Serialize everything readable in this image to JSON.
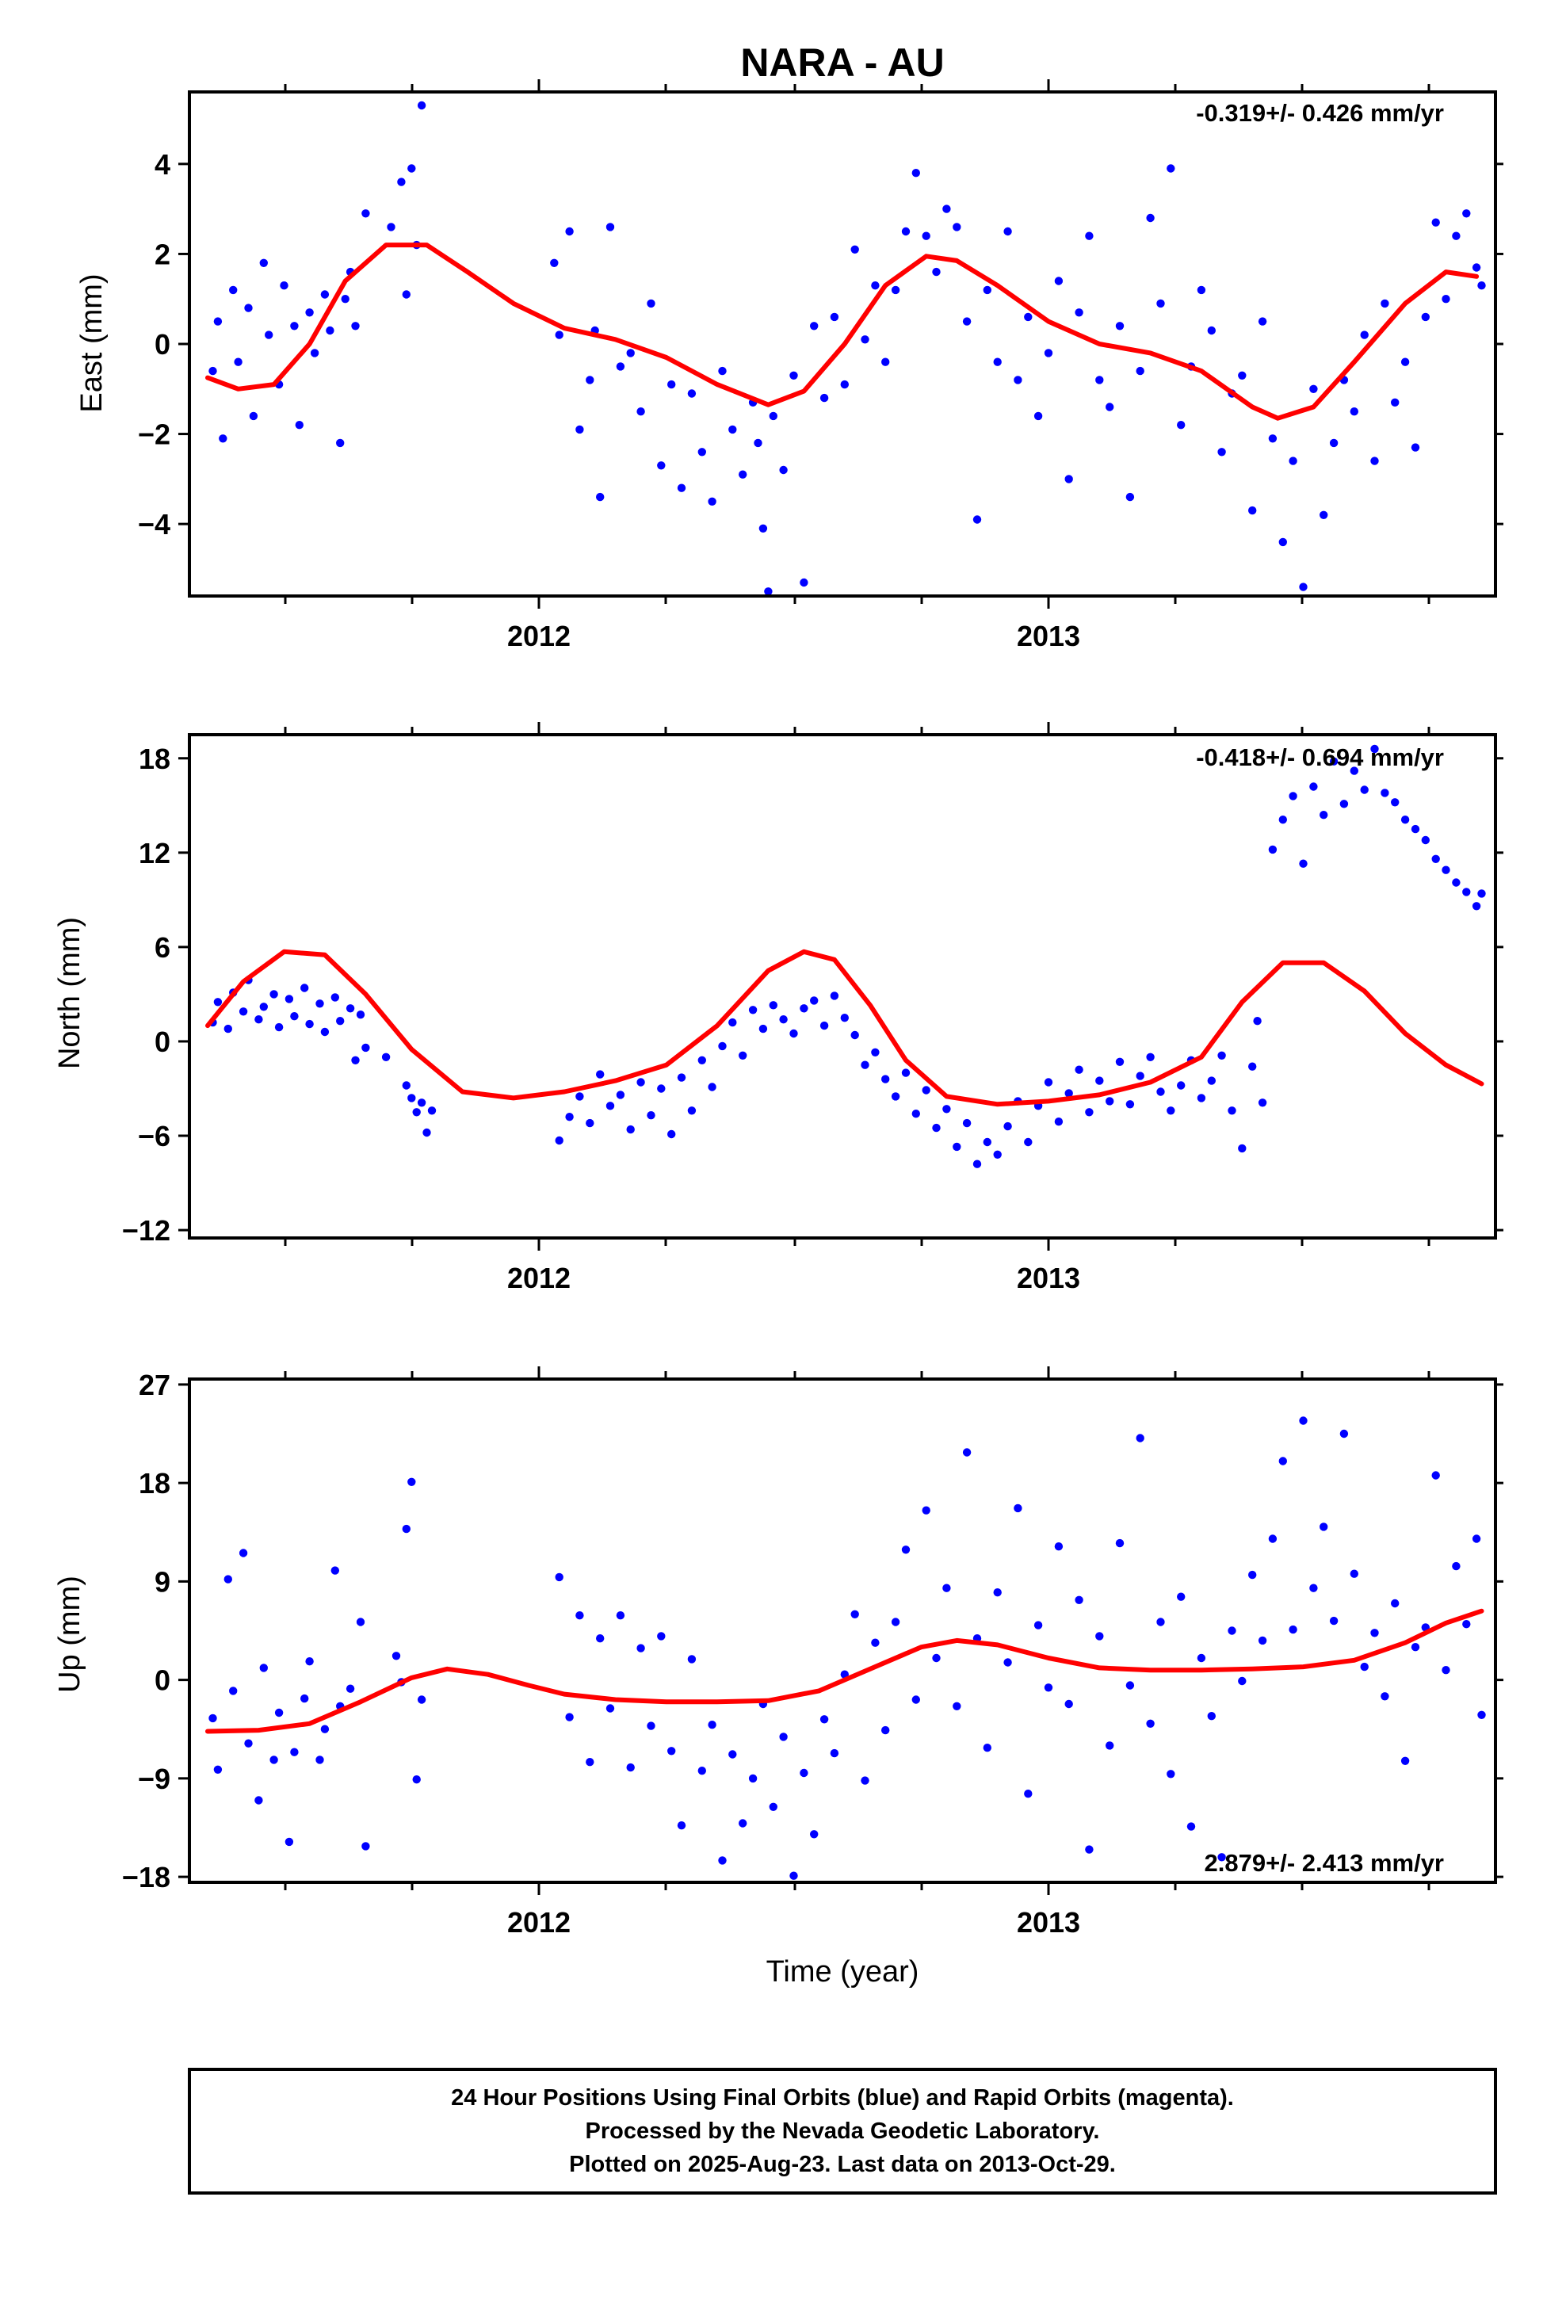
{
  "chart_data": {
    "title": "NARA - AU",
    "type": "scatter",
    "xlabel": "Time (year)",
    "x_tick_labels": [
      "2012",
      "2013"
    ],
    "xlim": [
      2011.31,
      2013.88
    ],
    "point_color": "#0000ff",
    "fit_color": "#ff0000",
    "panels": [
      {
        "name": "east",
        "ylabel": "East (mm)",
        "ylim": [
          -5.6,
          5.6
        ],
        "yticks": [
          -4,
          -2,
          0,
          2,
          4
        ],
        "ytick_labels": [
          "−4",
          "−2",
          "0",
          "2",
          "4"
        ],
        "annotation": "-0.319+/- 0.426 mm/yr",
        "fit_curve": {
          "x": [
            2011.35,
            2011.41,
            2011.48,
            2011.55,
            2011.62,
            2011.7,
            2011.78,
            2011.86,
            2011.95,
            2012.05,
            2012.15,
            2012.25,
            2012.35,
            2012.45,
            2012.52,
            2012.6,
            2012.68,
            2012.76,
            2012.82,
            2012.9,
            2013.0,
            2013.1,
            2013.2,
            2013.3,
            2013.4,
            2013.45,
            2013.52,
            2013.6,
            2013.7,
            2013.78,
            2013.84
          ],
          "y": [
            -0.75,
            -1.0,
            -0.9,
            0.0,
            1.4,
            2.2,
            2.2,
            1.6,
            0.9,
            0.35,
            0.1,
            -0.3,
            -0.9,
            -1.35,
            -1.05,
            0.0,
            1.3,
            1.95,
            1.85,
            1.3,
            0.5,
            0.0,
            -0.2,
            -0.6,
            -1.4,
            -1.65,
            -1.4,
            -0.4,
            0.9,
            1.6,
            1.5
          ]
        },
        "points": {
          "x": [
            2011.36,
            2011.37,
            2011.38,
            2011.4,
            2011.41,
            2011.43,
            2011.44,
            2011.46,
            2011.47,
            2011.49,
            2011.5,
            2011.52,
            2011.53,
            2011.55,
            2011.56,
            2011.58,
            2011.59,
            2011.61,
            2011.62,
            2011.63,
            2011.64,
            2011.66,
            2011.71,
            2011.73,
            2011.74,
            2011.75,
            2011.76,
            2011.77,
            2012.03,
            2012.04,
            2012.06,
            2012.08,
            2012.1,
            2012.11,
            2012.12,
            2012.14,
            2012.16,
            2012.18,
            2012.2,
            2012.22,
            2012.24,
            2012.26,
            2012.28,
            2012.3,
            2012.32,
            2012.34,
            2012.36,
            2012.38,
            2012.4,
            2012.42,
            2012.43,
            2012.44,
            2012.45,
            2012.46,
            2012.48,
            2012.5,
            2012.52,
            2012.54,
            2012.56,
            2012.58,
            2012.6,
            2012.62,
            2012.64,
            2012.66,
            2012.68,
            2012.7,
            2012.72,
            2012.74,
            2012.76,
            2012.78,
            2012.8,
            2012.82,
            2012.84,
            2012.86,
            2012.88,
            2012.9,
            2012.92,
            2012.94,
            2012.96,
            2012.98,
            2013.0,
            2013.02,
            2013.04,
            2013.06,
            2013.08,
            2013.1,
            2013.12,
            2013.14,
            2013.16,
            2013.18,
            2013.2,
            2013.22,
            2013.24,
            2013.26,
            2013.28,
            2013.3,
            2013.32,
            2013.34,
            2013.36,
            2013.38,
            2013.4,
            2013.42,
            2013.44,
            2013.46,
            2013.48,
            2013.5,
            2013.52,
            2013.54,
            2013.56,
            2013.58,
            2013.6,
            2013.62,
            2013.64,
            2013.66,
            2013.68,
            2013.7,
            2013.72,
            2013.74,
            2013.76,
            2013.78,
            2013.8,
            2013.82,
            2013.84,
            2013.85
          ],
          "y": [
            -0.6,
            0.5,
            -2.1,
            1.2,
            -0.4,
            0.8,
            -1.6,
            1.8,
            0.2,
            -0.9,
            1.3,
            0.4,
            -1.8,
            0.7,
            -0.2,
            1.1,
            0.3,
            -2.2,
            1.0,
            1.6,
            0.4,
            2.9,
            2.6,
            3.6,
            1.1,
            3.9,
            2.2,
            5.3,
            1.8,
            0.2,
            2.5,
            -1.9,
            -0.8,
            0.3,
            -3.4,
            2.6,
            -0.5,
            -0.2,
            -1.5,
            0.9,
            -2.7,
            -0.9,
            -3.2,
            -1.1,
            -2.4,
            -3.5,
            -0.6,
            -1.9,
            -2.9,
            -1.3,
            -2.2,
            -4.1,
            -5.5,
            -1.6,
            -2.8,
            -0.7,
            -5.3,
            0.4,
            -1.2,
            0.6,
            -0.9,
            2.1,
            0.1,
            1.3,
            -0.4,
            1.2,
            2.5,
            3.8,
            2.4,
            1.6,
            3.0,
            2.6,
            0.5,
            -3.9,
            1.2,
            -0.4,
            2.5,
            -0.8,
            0.6,
            -1.6,
            -0.2,
            1.4,
            -3.0,
            0.7,
            2.4,
            -0.8,
            -1.4,
            0.4,
            -3.4,
            -0.6,
            2.8,
            0.9,
            3.9,
            -1.8,
            -0.5,
            1.2,
            0.3,
            -2.4,
            -1.1,
            -0.7,
            -3.7,
            0.5,
            -2.1,
            -4.4,
            -2.6,
            -5.4,
            -1.0,
            -3.8,
            -2.2,
            -0.8,
            -1.5,
            0.2,
            -2.6,
            0.9,
            -1.3,
            -0.4,
            -2.3,
            0.6,
            2.7,
            1.0,
            2.4,
            2.9,
            1.7,
            1.3
          ]
        }
      },
      {
        "name": "north",
        "ylabel": "North (mm)",
        "ylim": [
          -12.5,
          19.5
        ],
        "yticks": [
          -12,
          -6,
          0,
          6,
          12,
          18
        ],
        "ytick_labels": [
          "−12",
          "−6",
          "0",
          "6",
          "12",
          "18"
        ],
        "annotation": "-0.418+/- 0.694 mm/yr",
        "fit_curve": {
          "x": [
            2011.35,
            2011.42,
            2011.5,
            2011.58,
            2011.66,
            2011.75,
            2011.85,
            2011.95,
            2012.05,
            2012.15,
            2012.25,
            2012.35,
            2012.45,
            2012.52,
            2012.58,
            2012.65,
            2012.72,
            2012.8,
            2012.9,
            2013.0,
            2013.1,
            2013.2,
            2013.3,
            2013.38,
            2013.46,
            2013.54,
            2013.62,
            2013.7,
            2013.78,
            2013.85
          ],
          "y": [
            1.0,
            3.8,
            5.7,
            5.5,
            3.0,
            -0.5,
            -3.2,
            -3.6,
            -3.2,
            -2.5,
            -1.5,
            1.0,
            4.5,
            5.7,
            5.2,
            2.3,
            -1.2,
            -3.5,
            -4.0,
            -3.8,
            -3.4,
            -2.6,
            -1.0,
            2.5,
            5.0,
            5.0,
            3.2,
            0.5,
            -1.5,
            -2.7
          ]
        },
        "points": {
          "x": [
            2011.36,
            2011.37,
            2011.39,
            2011.4,
            2011.42,
            2011.43,
            2011.45,
            2011.46,
            2011.48,
            2011.49,
            2011.51,
            2011.52,
            2011.54,
            2011.55,
            2011.57,
            2011.58,
            2011.6,
            2011.61,
            2011.63,
            2011.64,
            2011.65,
            2011.66,
            2011.7,
            2011.74,
            2011.75,
            2011.76,
            2011.77,
            2011.78,
            2011.79,
            2012.04,
            2012.06,
            2012.08,
            2012.1,
            2012.12,
            2012.14,
            2012.16,
            2012.18,
            2012.2,
            2012.22,
            2012.24,
            2012.26,
            2012.28,
            2012.3,
            2012.32,
            2012.34,
            2012.36,
            2012.38,
            2012.4,
            2012.42,
            2012.44,
            2012.46,
            2012.48,
            2012.5,
            2012.52,
            2012.54,
            2012.56,
            2012.58,
            2012.6,
            2012.62,
            2012.64,
            2012.66,
            2012.68,
            2012.7,
            2012.72,
            2012.74,
            2012.76,
            2012.78,
            2012.8,
            2012.82,
            2012.84,
            2012.86,
            2012.88,
            2012.9,
            2012.92,
            2012.94,
            2012.96,
            2012.98,
            2013.0,
            2013.02,
            2013.04,
            2013.06,
            2013.08,
            2013.1,
            2013.12,
            2013.14,
            2013.16,
            2013.18,
            2013.2,
            2013.22,
            2013.24,
            2013.26,
            2013.28,
            2013.3,
            2013.32,
            2013.34,
            2013.36,
            2013.38,
            2013.4,
            2013.41,
            2013.42,
            2013.44,
            2013.46,
            2013.48,
            2013.5,
            2013.52,
            2013.54,
            2013.56,
            2013.58,
            2013.6,
            2013.62,
            2013.64,
            2013.66,
            2013.68,
            2013.7,
            2013.72,
            2013.74,
            2013.76,
            2013.78,
            2013.8,
            2013.82,
            2013.84,
            2013.85
          ],
          "y": [
            1.2,
            2.5,
            0.8,
            3.1,
            1.9,
            3.9,
            1.4,
            2.2,
            3.0,
            0.9,
            2.7,
            1.6,
            3.4,
            1.1,
            2.4,
            0.6,
            2.8,
            1.3,
            2.1,
            -1.2,
            1.7,
            -0.4,
            -1.0,
            -2.8,
            -3.6,
            -4.5,
            -3.9,
            -5.8,
            -4.4,
            -6.3,
            -4.8,
            -3.5,
            -5.2,
            -2.1,
            -4.1,
            -3.4,
            -5.6,
            -2.6,
            -4.7,
            -3.0,
            -5.9,
            -2.3,
            -4.4,
            -1.2,
            -2.9,
            -0.3,
            1.2,
            -0.9,
            2.0,
            0.8,
            2.3,
            1.4,
            0.5,
            2.1,
            2.6,
            1.0,
            2.9,
            1.5,
            0.4,
            -1.5,
            -0.7,
            -2.4,
            -3.5,
            -2.0,
            -4.6,
            -3.1,
            -5.5,
            -4.3,
            -6.7,
            -5.2,
            -7.8,
            -6.4,
            -7.2,
            -5.4,
            -3.8,
            -6.4,
            -4.1,
            -2.6,
            -5.1,
            -3.3,
            -1.8,
            -4.5,
            -2.5,
            -3.8,
            -1.3,
            -4.0,
            -2.2,
            -1.0,
            -3.2,
            -4.4,
            -2.8,
            -1.2,
            -3.6,
            -2.5,
            -0.9,
            -4.4,
            -6.8,
            -1.6,
            1.3,
            -3.9,
            12.2,
            14.1,
            15.6,
            11.3,
            16.2,
            14.4,
            17.8,
            15.1,
            17.2,
            16.0,
            18.6,
            15.8,
            15.2,
            14.1,
            13.5,
            12.8,
            11.6,
            10.9,
            10.1,
            9.5,
            8.6,
            9.4
          ]
        }
      },
      {
        "name": "up",
        "ylabel": "Up (mm)",
        "ylim": [
          -18.5,
          27.5
        ],
        "yticks": [
          -18,
          -9,
          0,
          9,
          18,
          27
        ],
        "ytick_labels": [
          "−18",
          "−9",
          "0",
          "9",
          "18",
          "27"
        ],
        "annotation": "2.879+/- 2.413 mm/yr",
        "fit_curve": {
          "x": [
            2011.35,
            2011.45,
            2011.55,
            2011.65,
            2011.75,
            2011.82,
            2011.9,
            2011.98,
            2012.05,
            2012.15,
            2012.25,
            2012.35,
            2012.45,
            2012.55,
            2012.65,
            2012.75,
            2012.82,
            2012.9,
            2013.0,
            2013.1,
            2013.2,
            2013.3,
            2013.4,
            2013.5,
            2013.6,
            2013.7,
            2013.78,
            2013.85
          ],
          "y": [
            -4.7,
            -4.6,
            -4.0,
            -2.0,
            0.2,
            1.0,
            0.5,
            -0.5,
            -1.3,
            -1.8,
            -2.0,
            -2.0,
            -1.9,
            -1.0,
            1.0,
            3.0,
            3.6,
            3.2,
            2.0,
            1.1,
            0.9,
            0.9,
            1.0,
            1.2,
            1.8,
            3.4,
            5.2,
            6.3
          ]
        },
        "points": {
          "x": [
            2011.36,
            2011.37,
            2011.39,
            2011.4,
            2011.42,
            2011.43,
            2011.45,
            2011.46,
            2011.48,
            2011.49,
            2011.51,
            2011.52,
            2011.54,
            2011.55,
            2011.57,
            2011.58,
            2011.6,
            2011.61,
            2011.63,
            2011.65,
            2011.66,
            2011.72,
            2011.73,
            2011.74,
            2011.75,
            2011.76,
            2011.77,
            2012.04,
            2012.06,
            2012.08,
            2012.1,
            2012.12,
            2012.14,
            2012.16,
            2012.18,
            2012.2,
            2012.22,
            2012.24,
            2012.26,
            2012.28,
            2012.3,
            2012.32,
            2012.34,
            2012.36,
            2012.38,
            2012.4,
            2012.42,
            2012.44,
            2012.46,
            2012.48,
            2012.5,
            2012.52,
            2012.54,
            2012.56,
            2012.58,
            2012.6,
            2012.62,
            2012.64,
            2012.66,
            2012.68,
            2012.7,
            2012.72,
            2012.74,
            2012.76,
            2012.78,
            2012.8,
            2012.82,
            2012.84,
            2012.86,
            2012.88,
            2012.9,
            2012.92,
            2012.94,
            2012.96,
            2012.98,
            2013.0,
            2013.02,
            2013.04,
            2013.06,
            2013.08,
            2013.1,
            2013.12,
            2013.14,
            2013.16,
            2013.18,
            2013.2,
            2013.22,
            2013.24,
            2013.26,
            2013.28,
            2013.3,
            2013.32,
            2013.34,
            2013.36,
            2013.38,
            2013.4,
            2013.42,
            2013.44,
            2013.46,
            2013.48,
            2013.5,
            2013.52,
            2013.54,
            2013.56,
            2013.58,
            2013.6,
            2013.62,
            2013.64,
            2013.66,
            2013.68,
            2013.7,
            2013.72,
            2013.74,
            2013.76,
            2013.78,
            2013.8,
            2013.82,
            2013.84,
            2013.85
          ],
          "y": [
            -3.5,
            -8.2,
            9.2,
            -1.0,
            11.6,
            -5.8,
            -11.0,
            1.1,
            -7.3,
            -3.0,
            -14.8,
            -6.6,
            -1.7,
            1.7,
            -7.3,
            -4.5,
            10.0,
            -2.4,
            -0.8,
            5.3,
            -15.2,
            2.2,
            -0.2,
            13.8,
            18.1,
            -9.1,
            -1.8,
            9.4,
            -3.4,
            5.9,
            -7.5,
            3.8,
            -2.6,
            5.9,
            -8.0,
            2.9,
            -4.2,
            4.0,
            -6.5,
            -13.3,
            1.9,
            -8.3,
            -4.1,
            -16.5,
            -6.8,
            -13.1,
            -9.0,
            -2.2,
            -11.6,
            -5.2,
            -17.9,
            -8.5,
            -14.1,
            -3.6,
            -6.7,
            0.5,
            6.0,
            -9.2,
            3.4,
            -4.6,
            5.3,
            11.9,
            -1.8,
            15.5,
            2.0,
            8.4,
            -2.4,
            20.8,
            3.8,
            -6.2,
            8.0,
            1.6,
            15.7,
            -10.4,
            5.0,
            -0.7,
            12.2,
            -2.2,
            7.3,
            -15.5,
            4.0,
            -6.0,
            12.5,
            -0.5,
            22.1,
            -4.0,
            5.3,
            -8.6,
            7.6,
            -13.4,
            2.0,
            -3.3,
            -16.2,
            4.5,
            -0.1,
            9.6,
            3.6,
            12.9,
            20.0,
            4.6,
            23.7,
            8.4,
            14.0,
            5.4,
            22.5,
            9.7,
            1.2,
            4.3,
            -1.5,
            7.0,
            -7.4,
            3.0,
            4.8,
            18.7,
            0.9,
            10.4,
            5.1,
            12.9,
            -3.2
          ]
        }
      }
    ]
  },
  "footer": {
    "line1": "24 Hour Positions Using Final Orbits (blue) and Rapid Orbits (magenta).",
    "line2": "Processed by the Nevada Geodetic Laboratory.",
    "line3": "Plotted on 2025-Aug-23. Last data on 2013-Oct-29."
  }
}
